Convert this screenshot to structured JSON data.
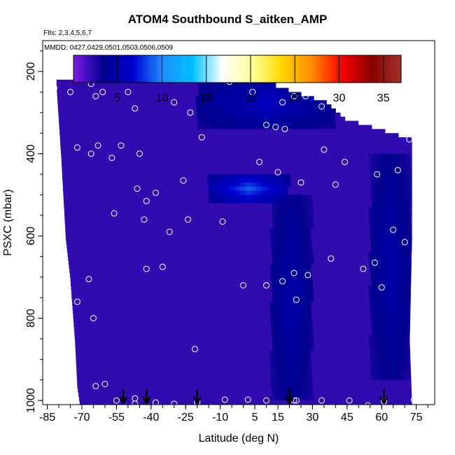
{
  "title": "ATOM4 Southbound S_aitken_AMP",
  "flights_label": "Flts: 2,3,4,5,6,7",
  "dates_label": "MMDD: 0427,0429,0501,0503,0506,0509",
  "chart_data": {
    "type": "heatmap",
    "xlabel": "Latitude (deg N)",
    "ylabel": "PSXC (mbar)",
    "xlim": [
      -87,
      83
    ],
    "ylim": [
      1010,
      125
    ],
    "xticks": [
      -85,
      -70,
      -55,
      -40,
      -25,
      -10,
      5,
      15,
      30,
      45,
      60,
      75
    ],
    "xtick_labels": [
      "-85",
      "-70",
      "-55",
      "-40",
      "-25",
      "-10",
      "5",
      "15",
      "30",
      "45",
      "60",
      "75"
    ],
    "yticks": [
      200,
      400,
      600,
      800,
      1000
    ],
    "ytick_labels": [
      "200",
      "400",
      "600",
      "800",
      "1000"
    ],
    "colorbar": {
      "min": 0,
      "max": 37,
      "ticks": [
        5,
        10,
        15,
        20,
        25,
        30,
        35
      ],
      "tick_labels": [
        "5",
        "10",
        "15",
        "20",
        "25",
        "30",
        "35"
      ],
      "colors": [
        "#7b1ae6",
        "#00008c",
        "#0000cd",
        "#1e90ff",
        "#00bfff",
        "#ffffff",
        "#ffff99",
        "#ffd700",
        "#ff8c00",
        "#ff0000",
        "#8b0000",
        "#a0302a"
      ]
    },
    "grid": false,
    "field": {
      "background_value": 2,
      "left_edge": [
        [
          230,
          -81
        ],
        [
          400,
          -79
        ],
        [
          600,
          -77
        ],
        [
          700,
          -75
        ],
        [
          850,
          -73
        ],
        [
          960,
          -72
        ],
        [
          1000,
          -71
        ]
      ],
      "right_edge": [
        [
          230,
          14
        ],
        [
          270,
          36
        ],
        [
          310,
          44
        ],
        [
          360,
          73
        ],
        [
          600,
          73
        ],
        [
          850,
          72
        ],
        [
          1000,
          73
        ]
      ],
      "features": [
        {
          "region": "upper troposphere",
          "lat": [
            -20,
            40
          ],
          "p": [
            215,
            340
          ],
          "value": 6
        },
        {
          "region": "midlevel band",
          "lat": [
            -15,
            20
          ],
          "p": [
            450,
            520
          ],
          "value": 9
        },
        {
          "region": "upper tropical peak",
          "lat": [
            28,
            32
          ],
          "p": [
            215,
            265
          ],
          "value": 12
        },
        {
          "region": "tropical column",
          "lat": [
            12,
            30
          ],
          "p": [
            500,
            1000
          ],
          "value": 5
        },
        {
          "region": "northern column",
          "lat": [
            55,
            73
          ],
          "p": [
            400,
            950
          ],
          "value": 5
        }
      ]
    },
    "obs_points": [
      [
        -82,
        240
      ],
      [
        -75,
        250
      ],
      [
        -66,
        230
      ],
      [
        -65,
        215
      ],
      [
        -64,
        260
      ],
      [
        -60,
        205
      ],
      [
        -61,
        250
      ],
      [
        -54,
        208
      ],
      [
        -50,
        250
      ],
      [
        -47,
        290
      ],
      [
        -30,
        275
      ],
      [
        -23,
        300
      ],
      [
        -6,
        225
      ],
      [
        4,
        250
      ],
      [
        17,
        215
      ],
      [
        22,
        260
      ],
      [
        27,
        260
      ],
      [
        17,
        275
      ],
      [
        34,
        285
      ],
      [
        10,
        330
      ],
      [
        14,
        335
      ],
      [
        18,
        340
      ],
      [
        -72,
        385
      ],
      [
        -66,
        400
      ],
      [
        -63,
        380
      ],
      [
        -57,
        410
      ],
      [
        -53,
        380
      ],
      [
        -45,
        400
      ],
      [
        -18,
        360
      ],
      [
        7,
        420
      ],
      [
        15,
        445
      ],
      [
        25,
        470
      ],
      [
        35,
        390
      ],
      [
        44,
        420
      ],
      [
        58,
        450
      ],
      [
        67,
        440
      ],
      [
        72,
        365
      ],
      [
        -26,
        465
      ],
      [
        -38,
        495
      ],
      [
        -46,
        485
      ],
      [
        -42,
        515
      ],
      [
        -79,
        540
      ],
      [
        -56,
        545
      ],
      [
        -43,
        560
      ],
      [
        -24,
        560
      ],
      [
        -9,
        565
      ],
      [
        40,
        475
      ],
      [
        65,
        585
      ],
      [
        70,
        615
      ],
      [
        -32,
        590
      ],
      [
        -67,
        705
      ],
      [
        -42,
        680
      ],
      [
        -35,
        675
      ],
      [
        -65,
        800
      ],
      [
        -72,
        760
      ],
      [
        -21,
        875
      ],
      [
        22,
        690
      ],
      [
        28,
        695
      ],
      [
        38,
        655
      ],
      [
        52,
        680
      ],
      [
        57,
        665
      ],
      [
        60,
        725
      ],
      [
        0,
        720
      ],
      [
        10,
        720
      ],
      [
        17,
        710
      ],
      [
        23,
        755
      ],
      [
        -64,
        965
      ],
      [
        -60,
        960
      ],
      [
        -55,
        1000
      ],
      [
        -47,
        1008
      ],
      [
        -38,
        1005
      ],
      [
        -30,
        1008
      ],
      [
        -20,
        1005
      ],
      [
        -8,
        998
      ],
      [
        2,
        998
      ],
      [
        10,
        1000
      ],
      [
        22,
        1000
      ],
      [
        34,
        1000
      ],
      [
        46,
        1000
      ],
      [
        54,
        1012
      ],
      [
        61,
        1002
      ],
      [
        74,
        998
      ],
      [
        23,
        1000
      ],
      [
        -47,
        995
      ]
    ],
    "flight_markers_lat": [
      -52,
      -42,
      -20,
      20,
      61
    ]
  }
}
